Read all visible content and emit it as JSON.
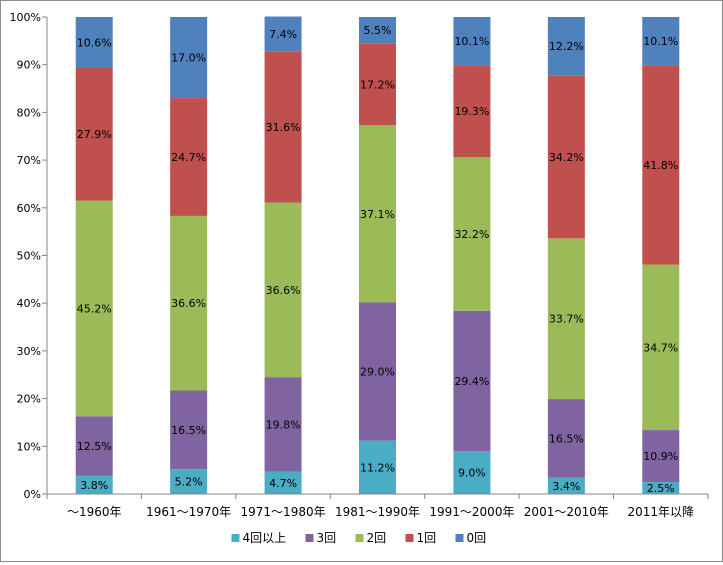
{
  "chart_data": {
    "type": "bar",
    "stacked": true,
    "percent": true,
    "categories": [
      "～1960年",
      "1961～1970年",
      "1971～1980年",
      "1981～1990年",
      "1991～2000年",
      "2001～2010年",
      "2011年以降"
    ],
    "series": [
      {
        "name": "4回以上",
        "color": "#4bacc6",
        "values": [
          3.8,
          5.2,
          4.7,
          11.2,
          9.0,
          3.4,
          2.5
        ],
        "labels": [
          "3.8%",
          "5.2%",
          "4.7%",
          "11.2%",
          "9.0%",
          "3.4%",
          "2.5%"
        ]
      },
      {
        "name": "3回",
        "color": "#8064a2",
        "values": [
          12.5,
          16.5,
          19.8,
          29.0,
          29.4,
          16.5,
          10.9
        ],
        "labels": [
          "12.5%",
          "16.5%",
          "19.8%",
          "29.0%",
          "29.4%",
          "16.5%",
          "10.9%"
        ]
      },
      {
        "name": "2回",
        "color": "#9bbb59",
        "values": [
          45.2,
          36.6,
          36.6,
          37.1,
          32.2,
          33.7,
          34.7
        ],
        "labels": [
          "45.2%",
          "36.6%",
          "36.6%",
          "37.1%",
          "32.2%",
          "33.7%",
          "34.7%"
        ]
      },
      {
        "name": "1回",
        "color": "#c0504d",
        "values": [
          27.9,
          24.7,
          31.6,
          17.2,
          19.3,
          34.2,
          41.8
        ],
        "labels": [
          "27.9%",
          "24.7%",
          "31.6%",
          "17.2%",
          "19.3%",
          "34.2%",
          "41.8%"
        ]
      },
      {
        "name": "0回",
        "color": "#4f81bd",
        "values": [
          10.6,
          17.0,
          7.4,
          5.5,
          10.1,
          12.2,
          10.1
        ],
        "labels": [
          "10.6%",
          "17.0%",
          "7.4%",
          "5.5%",
          "10.1%",
          "12.2%",
          "10.1%"
        ]
      }
    ],
    "yticks": [
      "0%",
      "10%",
      "20%",
      "30%",
      "40%",
      "50%",
      "60%",
      "70%",
      "80%",
      "90%",
      "100%"
    ],
    "ylim": [
      0,
      100
    ],
    "grid": "none",
    "legend": "bottom"
  }
}
